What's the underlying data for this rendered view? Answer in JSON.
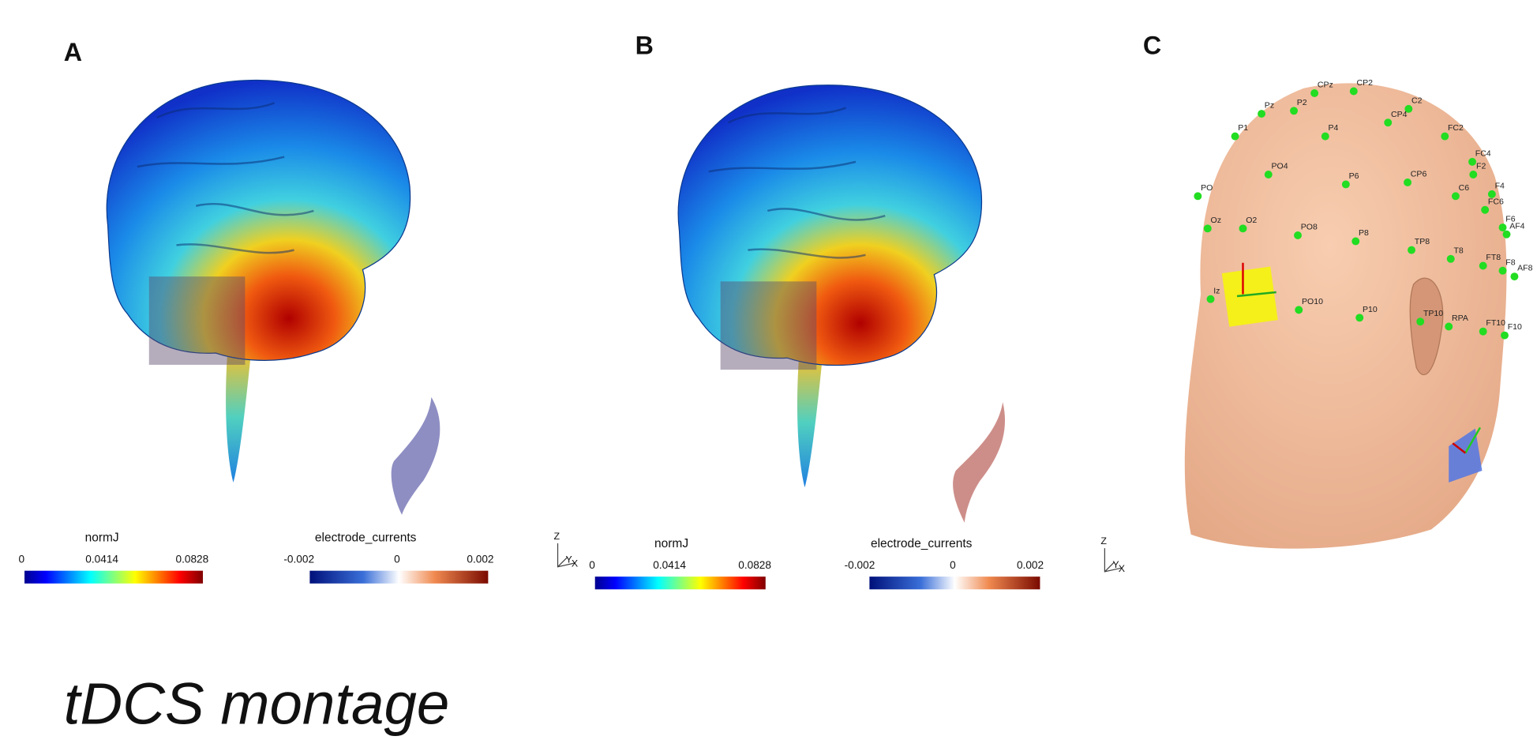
{
  "title": "tDCS montage",
  "panels": [
    {
      "label": "A",
      "colorbars": [
        {
          "title": "normJ",
          "ticks": [
            0,
            0.0414,
            0.0828
          ]
        },
        {
          "title": "electrode_currents",
          "ticks": [
            -0.002,
            0,
            0.002
          ]
        }
      ],
      "axes": [
        "Z",
        "Y",
        "X"
      ]
    },
    {
      "label": "B",
      "colorbars": [
        {
          "title": "normJ",
          "ticks": [
            0,
            0.0414,
            0.0828
          ]
        },
        {
          "title": "electrode_currents",
          "ticks": [
            -0.002,
            0,
            0.002
          ]
        }
      ],
      "axes": [
        "Z",
        "Y",
        "X"
      ]
    },
    {
      "label": "C",
      "electrodes": [
        "CPz",
        "CP2",
        "C2",
        "P2",
        "Pz",
        "CP4",
        "FC2",
        "P1",
        "P4",
        "FC4",
        "F2",
        "PO4",
        "P6",
        "CP6",
        "C6",
        "F4",
        "FC6",
        "PO",
        "Oz",
        "O2",
        "PO8",
        "P8",
        "TP8",
        "F6",
        "AF4",
        "T8",
        "FT8",
        "F8",
        "AF8",
        "Iz",
        "PO10",
        "P10",
        "TP10",
        "RPA",
        "FT10",
        "F10"
      ]
    }
  ]
}
